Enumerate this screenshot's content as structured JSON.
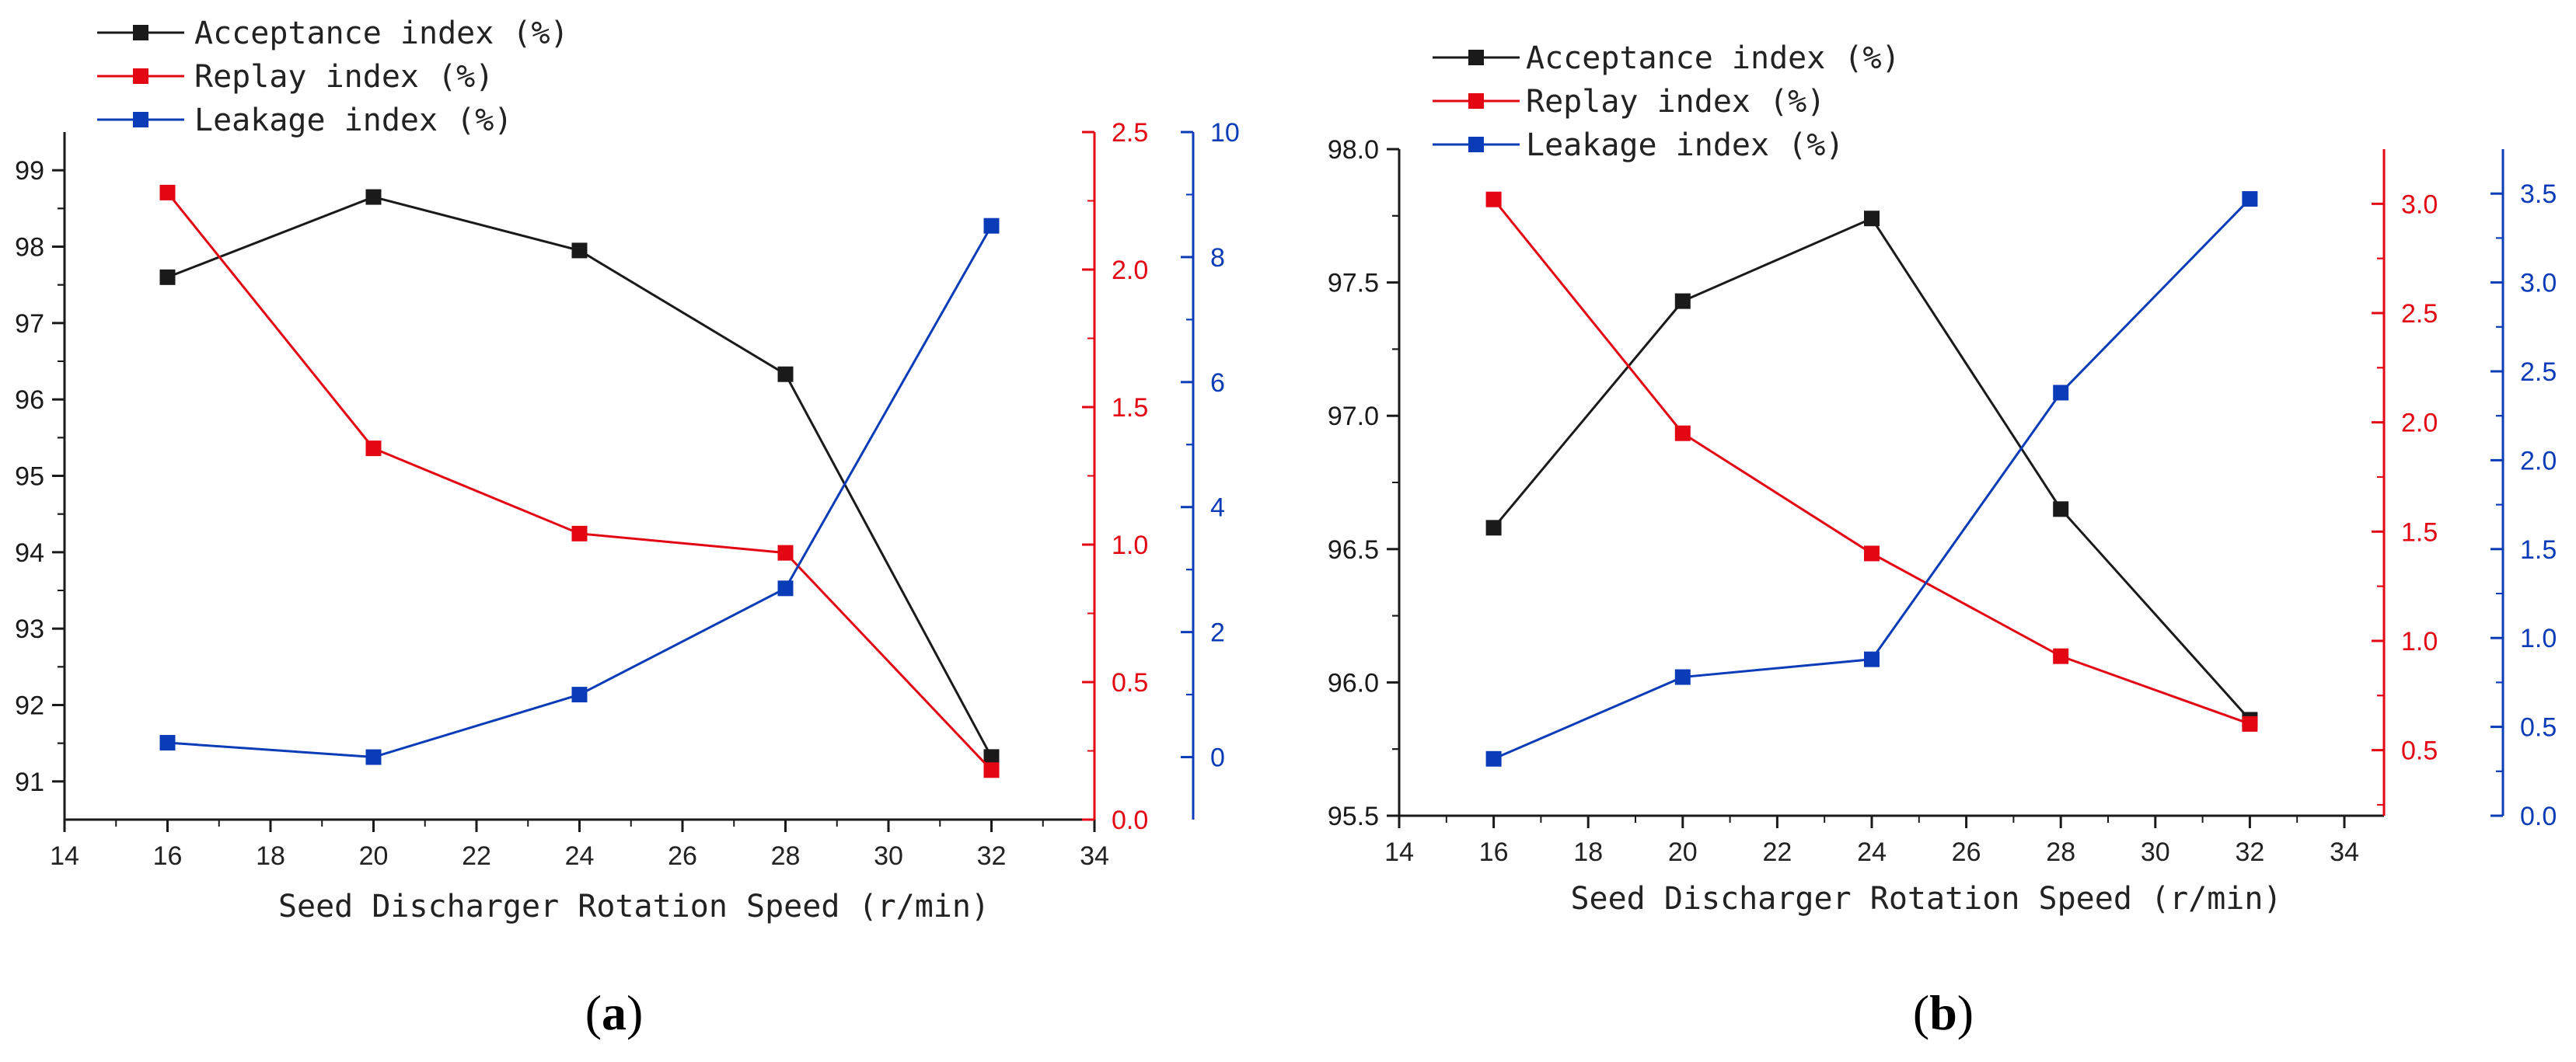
{
  "colors": {
    "acceptance": "#1a1a1a",
    "replay": "#e30613",
    "leakage": "#0b3cb8",
    "axis": "#1a1a1a"
  },
  "chart_data": [
    {
      "panel": "(a)",
      "panel_letter": "a",
      "type": "line",
      "xlabel": "Seed Discharger Rotation Speed (r/min)",
      "xlim": [
        14,
        34
      ],
      "xticks": [
        14,
        16,
        18,
        20,
        22,
        24,
        26,
        28,
        30,
        32,
        34
      ],
      "legend": {
        "placement": "top-left",
        "entries": [
          "Acceptance index (%)",
          "Replay index (%)",
          "Leakage index (%)"
        ]
      },
      "axes": {
        "acceptance": {
          "side": "left",
          "ylim": [
            90.5,
            99.5
          ],
          "ticks": [
            "91",
            "92",
            "93",
            "94",
            "95",
            "96",
            "97",
            "98",
            "99"
          ]
        },
        "replay": {
          "side": "right",
          "ylim": [
            0.0,
            2.5
          ],
          "ticks": [
            "0.0",
            "0.5",
            "1.0",
            "1.5",
            "2.0",
            "2.5"
          ]
        },
        "leakage": {
          "side": "right-offset",
          "ylim": [
            -1,
            10
          ],
          "ticks": [
            "0",
            "2",
            "4",
            "6",
            "8",
            "10"
          ]
        }
      },
      "series": [
        {
          "name": "Acceptance index (%)",
          "axis": "acceptance",
          "x": [
            16,
            20,
            24,
            28,
            32
          ],
          "values": [
            97.6,
            98.65,
            97.95,
            96.33,
            91.32
          ]
        },
        {
          "name": "Replay index (%)",
          "axis": "replay",
          "x": [
            16,
            20,
            24,
            28,
            32
          ],
          "values": [
            2.28,
            1.35,
            1.04,
            0.97,
            0.18
          ]
        },
        {
          "name": "Leakage index (%)",
          "axis": "leakage",
          "x": [
            16,
            20,
            24,
            28,
            32
          ],
          "values": [
            0.23,
            0.0,
            1.0,
            2.7,
            8.5
          ]
        }
      ]
    },
    {
      "panel": "(b)",
      "panel_letter": "b",
      "type": "line",
      "xlabel": "Seed Discharger Rotation Speed (r/min)",
      "xlim": [
        14,
        34
      ],
      "xticks": [
        14,
        16,
        18,
        20,
        22,
        24,
        26,
        28,
        30,
        32,
        34
      ],
      "legend": {
        "placement": "top-left",
        "entries": [
          "Acceptance index (%)",
          "Replay index (%)",
          "Leakage index (%)"
        ]
      },
      "axes": {
        "acceptance": {
          "side": "left",
          "ylim": [
            95.5,
            98.0
          ],
          "ticks": [
            "95.5",
            "96.0",
            "96.5",
            "97.0",
            "97.5",
            "98.0"
          ]
        },
        "replay": {
          "side": "right",
          "ylim": [
            0.2,
            3.25
          ],
          "ticks": [
            "0.5",
            "1.0",
            "1.5",
            "2.0",
            "2.5",
            "3.0"
          ]
        },
        "leakage": {
          "side": "right-offset",
          "ylim": [
            0.0,
            3.75
          ],
          "ticks": [
            "0.0",
            "0.5",
            "1.0",
            "1.5",
            "2.0",
            "2.5",
            "3.0",
            "3.5"
          ]
        }
      },
      "series": [
        {
          "name": "Acceptance index (%)",
          "axis": "acceptance",
          "x": [
            16,
            20,
            24,
            28,
            32
          ],
          "values": [
            96.58,
            97.43,
            97.74,
            96.65,
            95.86
          ]
        },
        {
          "name": "Replay index (%)",
          "axis": "replay",
          "x": [
            16,
            20,
            24,
            28,
            32
          ],
          "values": [
            3.02,
            1.95,
            1.4,
            0.93,
            0.62
          ]
        },
        {
          "name": "Leakage index (%)",
          "axis": "leakage",
          "x": [
            16,
            20,
            24,
            28,
            32
          ],
          "values": [
            0.32,
            0.78,
            0.88,
            2.38,
            3.47
          ]
        }
      ]
    }
  ]
}
